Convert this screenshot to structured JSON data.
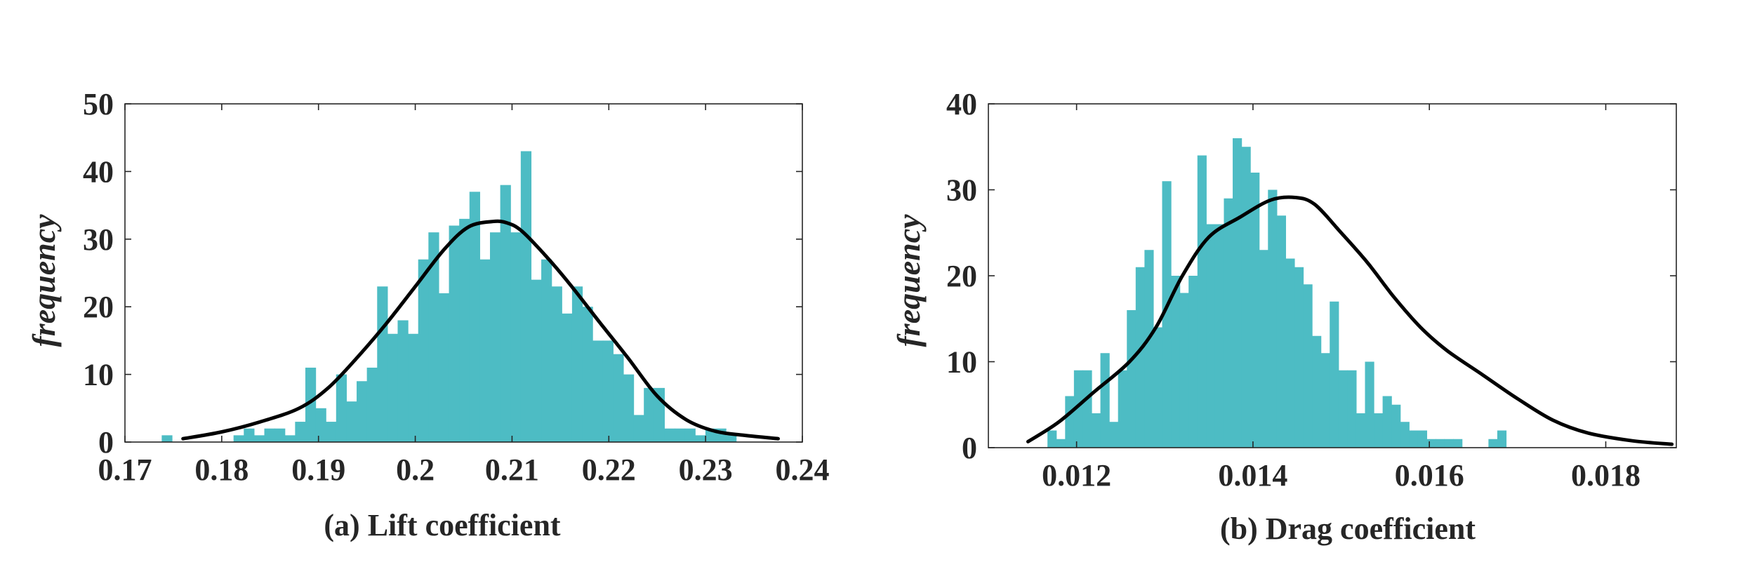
{
  "chart_data": [
    {
      "type": "bar",
      "title": "",
      "caption": "(a) Lift coefficient",
      "xlabel": "",
      "ylabel": "frequency",
      "xlim": [
        0.17,
        0.24
      ],
      "ylim": [
        0,
        50
      ],
      "xticks": [
        "0.17",
        "0.18",
        "0.19",
        "0.2",
        "0.21",
        "0.22",
        "0.23",
        "0.24"
      ],
      "yticks": [
        "0",
        "10",
        "20",
        "30",
        "40",
        "50"
      ],
      "grid": false,
      "bar_color": "#4dbcc4",
      "bins": {
        "start": 0.1738,
        "width": 0.00106,
        "counts": [
          1,
          0,
          0,
          0,
          0,
          0,
          0,
          1,
          2,
          1,
          2,
          2,
          1,
          3,
          11,
          5,
          3,
          10,
          6,
          9,
          11,
          23,
          16,
          18,
          16,
          27,
          31,
          22,
          32,
          33,
          37,
          27,
          31,
          38,
          31,
          43,
          24,
          27,
          23,
          19,
          23,
          20,
          15,
          15,
          13,
          10,
          4,
          8,
          8,
          2,
          2,
          2,
          1,
          2,
          2,
          1
        ]
      },
      "curve": {
        "name": "fitted density",
        "color": "#000000",
        "x": [
          0.176,
          0.18,
          0.184,
          0.188,
          0.191,
          0.194,
          0.197,
          0.2,
          0.203,
          0.2055,
          0.208,
          0.2095,
          0.211,
          0.2135,
          0.216,
          0.219,
          0.222,
          0.225,
          0.228,
          0.231,
          0.234,
          0.2375
        ],
        "y": [
          0.5,
          1.5,
          3,
          5,
          8,
          12.5,
          17.5,
          23,
          28.5,
          31.8,
          32.6,
          32.4,
          31.2,
          27.5,
          23.3,
          17.8,
          12.4,
          6.8,
          3.3,
          1.6,
          1,
          0.5
        ]
      }
    },
    {
      "type": "bar",
      "title": "",
      "caption": "(b) Drag coefficient",
      "xlabel": "",
      "ylabel": "frequency",
      "xlim": [
        0.011,
        0.0188
      ],
      "ylim": [
        0,
        40
      ],
      "xticks": [
        "0.012",
        "0.014",
        "0.016",
        "0.018"
      ],
      "yticks": [
        "0",
        "10",
        "20",
        "30",
        "40"
      ],
      "grid": false,
      "bar_color": "#4dbcc4",
      "bins": {
        "start": 0.01167,
        "width": 0.0001,
        "counts": [
          2,
          1,
          6,
          9,
          9,
          4,
          11,
          3,
          9,
          16,
          21,
          23,
          14,
          31,
          20,
          18,
          20,
          34,
          26,
          26,
          29,
          36,
          35,
          32,
          23,
          30,
          27,
          22,
          21,
          19,
          13,
          11,
          17,
          9,
          9,
          4,
          10,
          4,
          6,
          5,
          3,
          2,
          2,
          1,
          1,
          1,
          1,
          0,
          0,
          0,
          1,
          2
        ]
      },
      "curve": {
        "name": "fitted density",
        "color": "#000000",
        "x": [
          0.01145,
          0.0118,
          0.0122,
          0.0126,
          0.0129,
          0.0132,
          0.0135,
          0.01385,
          0.0142,
          0.01448,
          0.0147,
          0.015,
          0.0153,
          0.0156,
          0.0159,
          0.0162,
          0.0166,
          0.017,
          0.0174,
          0.0178,
          0.0183,
          0.01875
        ],
        "y": [
          0.7,
          3,
          6.5,
          10,
          14,
          20,
          24.5,
          26.8,
          28.8,
          29.1,
          28.3,
          25,
          21.5,
          17.5,
          14,
          11.3,
          8.5,
          5.7,
          3.2,
          1.7,
          0.8,
          0.4
        ]
      }
    }
  ]
}
